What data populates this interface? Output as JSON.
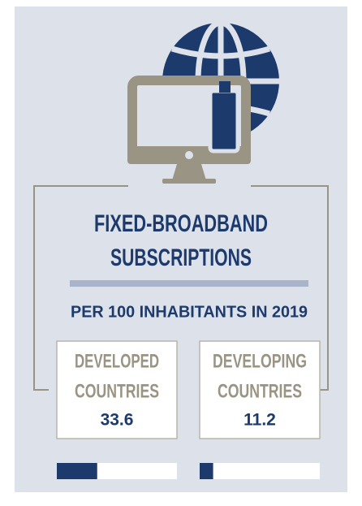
{
  "chart_data": {
    "type": "bar",
    "title": [
      "FIXED-BROADBAND",
      "SUBSCRIPTIONS"
    ],
    "subtitle": "PER 100 INHABITANTS IN 2019",
    "categories": [
      [
        "DEVELOPED",
        "COUNTRIES"
      ],
      [
        "DEVELOPING",
        "COUNTRIES"
      ]
    ],
    "values": [
      33.6,
      11.2
    ],
    "xlim": [
      0,
      100
    ],
    "color": "#1d3a6d"
  }
}
